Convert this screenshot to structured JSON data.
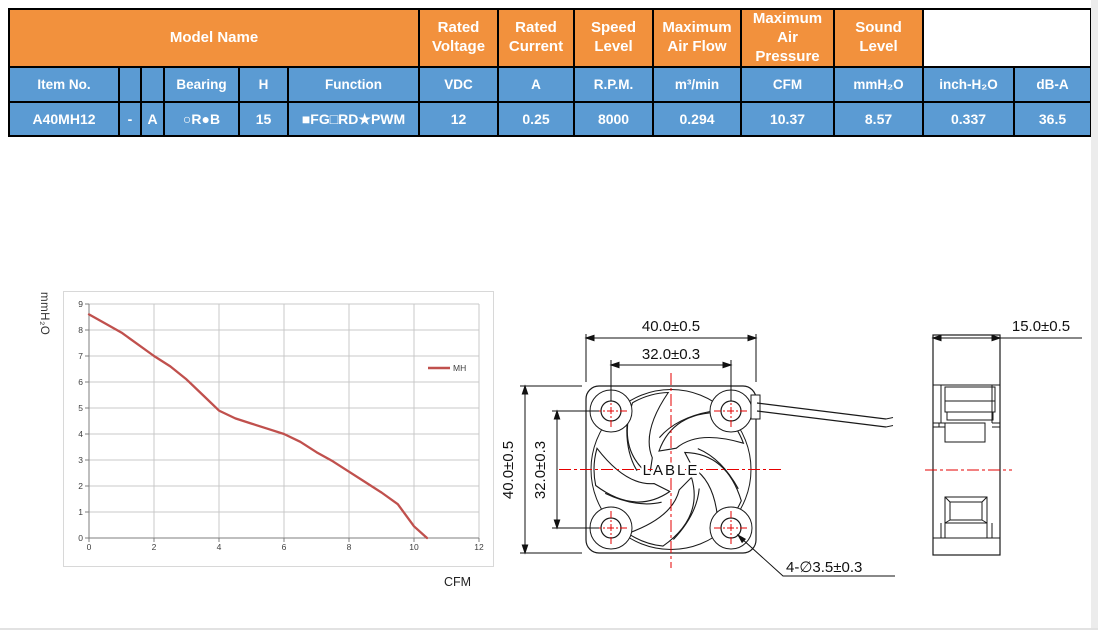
{
  "table": {
    "top_header": [
      "Model Name",
      "Rated\nVoltage",
      "Rated\nCurrent",
      "Speed\nLevel",
      "Maximum\nAir Flow",
      "Maximum\nAir Pressure",
      "Sound\nLevel"
    ],
    "sub_header": [
      "Item No.",
      "",
      "",
      "Bearing",
      "H",
      "Function",
      "VDC",
      "A",
      "R.P.M.",
      "m³/min",
      "CFM",
      "mmH₂O",
      "inch-H₂O",
      "dB-A"
    ],
    "data_row": [
      "A40MH12",
      "-",
      "A",
      "○R●B",
      "15",
      "■FG□RD★PWM",
      "12",
      "0.25",
      "8000",
      "0.294",
      "10.37",
      "8.57",
      "0.337",
      "36.5"
    ],
    "colors": {
      "header_bg": "#F2913D",
      "row_bg": "#5B9BD3",
      "border": "#000000",
      "text": "#FFFFFF"
    }
  },
  "chart_data": {
    "type": "line",
    "title": "",
    "xlabel": "CFM",
    "ylabel": "mmH₂O",
    "xlim": [
      0,
      12
    ],
    "ylim": [
      0,
      9
    ],
    "x_ticks": [
      0,
      2,
      4,
      6,
      8,
      10,
      12
    ],
    "y_ticks": [
      0,
      1,
      2,
      3,
      4,
      5,
      6,
      7,
      8,
      9
    ],
    "grid": true,
    "legend_position": "right",
    "series": [
      {
        "name": "MH",
        "color": "#C0504D",
        "x": [
          0,
          0.5,
          1,
          1.5,
          2,
          2.5,
          3,
          3.5,
          4,
          4.5,
          5,
          5.5,
          6,
          6.5,
          7,
          7.5,
          8,
          8.5,
          9,
          9.5,
          10,
          10.4
        ],
        "y": [
          8.6,
          8.25,
          7.9,
          7.45,
          7.0,
          6.6,
          6.1,
          5.5,
          4.9,
          4.6,
          4.4,
          4.2,
          4.0,
          3.7,
          3.3,
          2.95,
          2.55,
          2.15,
          1.75,
          1.3,
          0.45,
          0
        ]
      }
    ]
  },
  "drawing": {
    "front_view": {
      "dim_width_outer": "40.0±0.5",
      "dim_width_inner": "32.0±0.3",
      "dim_height_outer": "40.0±0.5",
      "dim_height_inner": "32.0±0.3",
      "dim_holes": "4-∅3.5±0.3",
      "center_label": "LABLE"
    },
    "side_view": {
      "dim_depth": "15.0±0.5"
    }
  }
}
